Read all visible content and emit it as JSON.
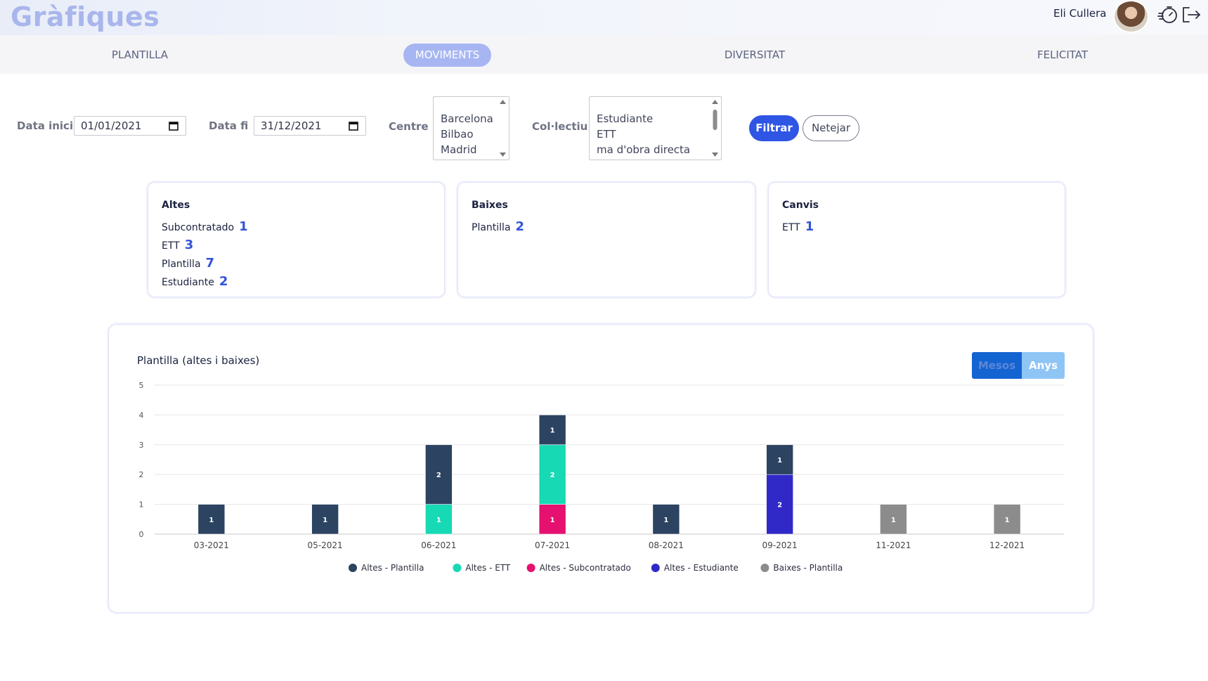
{
  "header": {
    "title": "Gràfiques",
    "user_name": "Eli Cullera",
    "icons": [
      "timer-icon",
      "logout-icon"
    ]
  },
  "tabs": [
    {
      "label": "PLANTILLA",
      "active": false
    },
    {
      "label": "MOVIMENTS",
      "active": true
    },
    {
      "label": "DIVERSITAT",
      "active": false
    },
    {
      "label": "FELICITAT",
      "active": false
    }
  ],
  "filters": {
    "start_label": "Data inici",
    "start_value": "01/01/2021",
    "end_label": "Data fi",
    "end_value": "31/12/2021",
    "centre_label": "Centre",
    "centre_options": [
      "Barcelona",
      "Bilbao",
      "Madrid"
    ],
    "collectiu_label": "Col·lectiu",
    "collectiu_options": [
      "Estudiante",
      "ETT",
      "ma d'obra directa"
    ],
    "filter_button": "Filtrar",
    "clear_button": "Netejar"
  },
  "cards": {
    "altes": {
      "title": "Altes",
      "rows": [
        {
          "label": "Subcontratado",
          "value": "1"
        },
        {
          "label": "ETT",
          "value": "3"
        },
        {
          "label": "Plantilla",
          "value": "7"
        },
        {
          "label": "Estudiante",
          "value": "2"
        }
      ]
    },
    "baixes": {
      "title": "Baixes",
      "rows": [
        {
          "label": "Plantilla",
          "value": "2"
        }
      ]
    },
    "canvis": {
      "title": "Canvis",
      "rows": [
        {
          "label": "ETT",
          "value": "1"
        }
      ]
    }
  },
  "chart_toggle": {
    "months": "Mesos",
    "years": "Anys"
  },
  "colors": {
    "altes_plantilla": "#2c4361",
    "altes_ett": "#17d9b4",
    "altes_subcontratado": "#e5106f",
    "altes_estudiante": "#3128c8",
    "baixes_plantilla": "#8c8c8c",
    "accent": "#2f55e4"
  },
  "chart_data": {
    "type": "bar",
    "stacked": true,
    "title": "Plantilla (altes i baixes)",
    "categories": [
      "03-2021",
      "05-2021",
      "06-2021",
      "07-2021",
      "08-2021",
      "09-2021",
      "11-2021",
      "12-2021"
    ],
    "ylim": [
      0,
      5
    ],
    "yticks": [
      "0",
      "1",
      "2",
      "3",
      "4",
      "5"
    ],
    "grid": true,
    "legend_position": "bottom",
    "series": [
      {
        "name": "Altes - Plantilla",
        "color": "#2c4361",
        "values": [
          1,
          1,
          2,
          1,
          1,
          1,
          0,
          0
        ]
      },
      {
        "name": "Altes - ETT",
        "color": "#17d9b4",
        "values": [
          0,
          0,
          1,
          2,
          0,
          0,
          0,
          0
        ]
      },
      {
        "name": "Altes - Subcontratado",
        "color": "#e5106f",
        "values": [
          0,
          0,
          0,
          1,
          0,
          0,
          0,
          0
        ]
      },
      {
        "name": "Altes - Estudiante",
        "color": "#3128c8",
        "values": [
          0,
          0,
          0,
          0,
          0,
          2,
          0,
          0
        ]
      },
      {
        "name": "Baixes - Plantilla",
        "color": "#8c8c8c",
        "values": [
          0,
          0,
          0,
          0,
          0,
          0,
          1,
          1
        ]
      }
    ],
    "stack_order": [
      "Altes - Subcontratado",
      "Altes - Estudiante",
      "Altes - ETT",
      "Altes - Plantilla",
      "Baixes - Plantilla"
    ]
  }
}
